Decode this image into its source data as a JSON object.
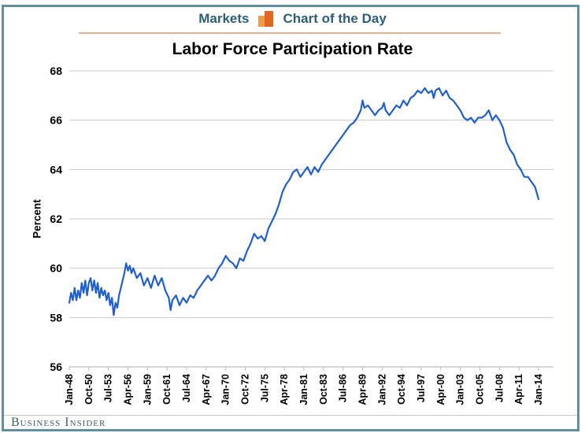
{
  "header": {
    "left_label": "Markets",
    "right_label": "Chart of the Day",
    "icon": "bar-chart-icon",
    "text_color": "#2d5e78",
    "rule_color": "#e9b18c",
    "icon_bar_light": "#ef9b4f",
    "icon_bar_dark": "#e2671e"
  },
  "footer": {
    "label": "Business Insider",
    "text_color": "#3f5d6b"
  },
  "frame": {
    "border_color": "#5f8fa0"
  },
  "chart_data": {
    "type": "line",
    "title": "Labor Force Participation Rate",
    "xlabel": "",
    "ylabel": "Percent",
    "ylim": [
      56,
      68
    ],
    "ytick_values": [
      56,
      58,
      60,
      62,
      64,
      66,
      68
    ],
    "xtick_labels": [
      "Jan-48",
      "Oct-50",
      "Jul-53",
      "Apr-56",
      "Jan-59",
      "Oct-61",
      "Jul-64",
      "Apr-67",
      "Jan-70",
      "Oct-72",
      "Jul-75",
      "Apr-78",
      "Jan-81",
      "Oct-83",
      "Jul-86",
      "Apr-89",
      "Jan-92",
      "Oct-94",
      "Jul-97",
      "Apr-00",
      "Jan-03",
      "Oct-05",
      "Jul-08",
      "Apr-11",
      "Jan-14"
    ],
    "xtick_interval_years": 2.75,
    "x_range_years": [
      1948,
      2014
    ],
    "grid": "horizontal",
    "gridline_color": "#c9c9c9",
    "axis_color": "#bdbdbd",
    "line_color": "#1f5fce",
    "tick_label_color": "#000000",
    "series": [
      {
        "name": "Labor Force Participation Rate (percent)",
        "points": [
          [
            1948.0,
            58.6
          ],
          [
            1948.25,
            59.0
          ],
          [
            1948.5,
            58.7
          ],
          [
            1948.75,
            59.2
          ],
          [
            1949.0,
            58.7
          ],
          [
            1949.25,
            59.1
          ],
          [
            1949.5,
            58.8
          ],
          [
            1949.75,
            59.4
          ],
          [
            1950.0,
            59.0
          ],
          [
            1950.25,
            59.5
          ],
          [
            1950.5,
            58.9
          ],
          [
            1950.75,
            59.4
          ],
          [
            1951.0,
            59.6
          ],
          [
            1951.25,
            59.1
          ],
          [
            1951.5,
            59.5
          ],
          [
            1951.75,
            59.0
          ],
          [
            1952.0,
            59.4
          ],
          [
            1952.25,
            58.8
          ],
          [
            1952.5,
            59.2
          ],
          [
            1952.75,
            58.9
          ],
          [
            1953.0,
            59.1
          ],
          [
            1953.25,
            58.7
          ],
          [
            1953.5,
            59.0
          ],
          [
            1953.75,
            58.5
          ],
          [
            1954.0,
            58.8
          ],
          [
            1954.25,
            58.1
          ],
          [
            1954.5,
            58.6
          ],
          [
            1954.75,
            58.4
          ],
          [
            1955.0,
            58.9
          ],
          [
            1955.25,
            59.2
          ],
          [
            1955.5,
            59.5
          ],
          [
            1955.75,
            59.8
          ],
          [
            1956.0,
            60.2
          ],
          [
            1956.25,
            59.9
          ],
          [
            1956.5,
            60.1
          ],
          [
            1956.75,
            59.8
          ],
          [
            1957.0,
            60.0
          ],
          [
            1957.5,
            59.6
          ],
          [
            1958.0,
            59.8
          ],
          [
            1958.5,
            59.3
          ],
          [
            1959.0,
            59.6
          ],
          [
            1959.5,
            59.2
          ],
          [
            1960.0,
            59.7
          ],
          [
            1960.5,
            59.3
          ],
          [
            1961.0,
            59.6
          ],
          [
            1961.5,
            59.1
          ],
          [
            1962.0,
            58.8
          ],
          [
            1962.25,
            58.3
          ],
          [
            1962.5,
            58.7
          ],
          [
            1963.0,
            58.9
          ],
          [
            1963.5,
            58.5
          ],
          [
            1964.0,
            58.8
          ],
          [
            1964.5,
            58.6
          ],
          [
            1965.0,
            58.9
          ],
          [
            1965.5,
            58.8
          ],
          [
            1966.0,
            59.1
          ],
          [
            1966.5,
            59.3
          ],
          [
            1967.0,
            59.5
          ],
          [
            1967.5,
            59.7
          ],
          [
            1968.0,
            59.5
          ],
          [
            1968.5,
            59.7
          ],
          [
            1969.0,
            60.0
          ],
          [
            1969.5,
            60.2
          ],
          [
            1970.0,
            60.5
          ],
          [
            1970.5,
            60.3
          ],
          [
            1971.0,
            60.2
          ],
          [
            1971.5,
            60.0
          ],
          [
            1972.0,
            60.4
          ],
          [
            1972.5,
            60.3
          ],
          [
            1973.0,
            60.7
          ],
          [
            1973.5,
            61.0
          ],
          [
            1974.0,
            61.4
          ],
          [
            1974.5,
            61.2
          ],
          [
            1975.0,
            61.3
          ],
          [
            1975.5,
            61.1
          ],
          [
            1976.0,
            61.6
          ],
          [
            1976.5,
            61.9
          ],
          [
            1977.0,
            62.2
          ],
          [
            1977.5,
            62.6
          ],
          [
            1978.0,
            63.1
          ],
          [
            1978.5,
            63.4
          ],
          [
            1979.0,
            63.6
          ],
          [
            1979.5,
            63.9
          ],
          [
            1980.0,
            64.0
          ],
          [
            1980.5,
            63.7
          ],
          [
            1981.0,
            63.9
          ],
          [
            1981.5,
            64.1
          ],
          [
            1982.0,
            63.8
          ],
          [
            1982.5,
            64.1
          ],
          [
            1983.0,
            63.9
          ],
          [
            1983.5,
            64.2
          ],
          [
            1984.0,
            64.4
          ],
          [
            1984.5,
            64.6
          ],
          [
            1985.0,
            64.8
          ],
          [
            1985.5,
            65.0
          ],
          [
            1986.0,
            65.2
          ],
          [
            1986.5,
            65.4
          ],
          [
            1987.0,
            65.6
          ],
          [
            1987.5,
            65.8
          ],
          [
            1988.0,
            65.9
          ],
          [
            1988.5,
            66.1
          ],
          [
            1989.0,
            66.4
          ],
          [
            1989.25,
            66.8
          ],
          [
            1989.5,
            66.5
          ],
          [
            1990.0,
            66.6
          ],
          [
            1990.5,
            66.4
          ],
          [
            1991.0,
            66.2
          ],
          [
            1991.5,
            66.4
          ],
          [
            1992.0,
            66.5
          ],
          [
            1992.25,
            66.7
          ],
          [
            1992.5,
            66.4
          ],
          [
            1993.0,
            66.2
          ],
          [
            1993.5,
            66.4
          ],
          [
            1994.0,
            66.6
          ],
          [
            1994.5,
            66.5
          ],
          [
            1995.0,
            66.8
          ],
          [
            1995.5,
            66.6
          ],
          [
            1996.0,
            66.9
          ],
          [
            1996.5,
            67.0
          ],
          [
            1997.0,
            67.2
          ],
          [
            1997.5,
            67.1
          ],
          [
            1998.0,
            67.3
          ],
          [
            1998.5,
            67.1
          ],
          [
            1999.0,
            67.2
          ],
          [
            1999.25,
            66.9
          ],
          [
            1999.5,
            67.2
          ],
          [
            2000.0,
            67.3
          ],
          [
            2000.5,
            67.0
          ],
          [
            2001.0,
            67.2
          ],
          [
            2001.5,
            66.9
          ],
          [
            2002.0,
            66.8
          ],
          [
            2002.5,
            66.6
          ],
          [
            2003.0,
            66.4
          ],
          [
            2003.5,
            66.1
          ],
          [
            2004.0,
            66.0
          ],
          [
            2004.5,
            66.1
          ],
          [
            2005.0,
            65.9
          ],
          [
            2005.5,
            66.1
          ],
          [
            2006.0,
            66.1
          ],
          [
            2006.5,
            66.2
          ],
          [
            2007.0,
            66.4
          ],
          [
            2007.5,
            66.0
          ],
          [
            2008.0,
            66.2
          ],
          [
            2008.5,
            66.0
          ],
          [
            2009.0,
            65.7
          ],
          [
            2009.5,
            65.1
          ],
          [
            2010.0,
            64.8
          ],
          [
            2010.5,
            64.6
          ],
          [
            2011.0,
            64.2
          ],
          [
            2011.5,
            64.0
          ],
          [
            2012.0,
            63.7
          ],
          [
            2012.5,
            63.7
          ],
          [
            2013.0,
            63.5
          ],
          [
            2013.5,
            63.3
          ],
          [
            2014.0,
            62.8
          ]
        ]
      }
    ]
  }
}
